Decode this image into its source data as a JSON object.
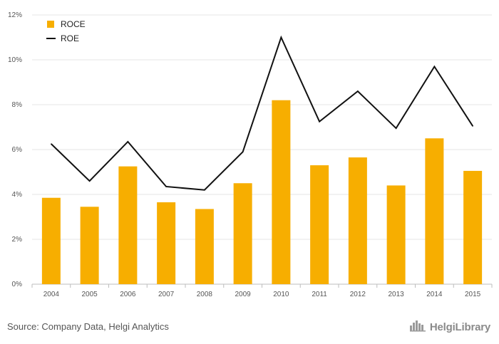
{
  "chart_data": {
    "type": "bar",
    "categories": [
      "2004",
      "2005",
      "2006",
      "2007",
      "2008",
      "2009",
      "2010",
      "2011",
      "2012",
      "2013",
      "2014",
      "2015"
    ],
    "series": [
      {
        "name": "ROCE",
        "type": "bar",
        "color": "#f7ae00",
        "values": [
          3.85,
          3.45,
          5.25,
          3.65,
          3.35,
          4.5,
          8.2,
          5.3,
          5.65,
          4.4,
          6.5,
          5.05
        ]
      },
      {
        "name": "ROE",
        "type": "line",
        "color": "#111111",
        "values": [
          6.25,
          4.6,
          6.35,
          4.35,
          4.2,
          5.9,
          11.0,
          7.25,
          8.6,
          6.95,
          9.7,
          7.05
        ]
      }
    ],
    "y_ticks": [
      "0%",
      "2%",
      "4%",
      "6%",
      "8%",
      "10%",
      "12%"
    ],
    "ylim": [
      0,
      12
    ],
    "legend_position": "top-left",
    "grid": "horizontal"
  },
  "footer": {
    "source": "Source: Company Data, Helgi Analytics",
    "brand": "HelgiLibrary"
  },
  "icons": {
    "brand_logo": "skyline-logo-icon"
  }
}
